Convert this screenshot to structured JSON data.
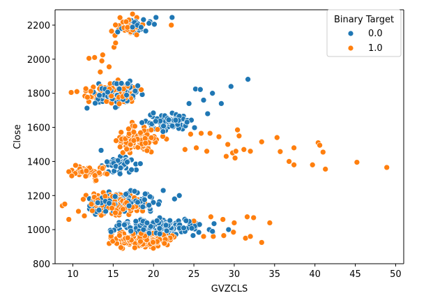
{
  "chart_data": {
    "type": "scatter",
    "xlabel": "GVZCLS",
    "ylabel": "Close",
    "xlim": [
      7.8,
      51.0
    ],
    "ylim": [
      800,
      2290
    ],
    "xticks": [
      10,
      15,
      20,
      25,
      30,
      35,
      40,
      45,
      50
    ],
    "yticks": [
      800,
      1000,
      1200,
      1400,
      1600,
      1800,
      2000,
      2200
    ],
    "grid": false,
    "legend": {
      "title": "Binary Target",
      "placement": "top-right",
      "entries": [
        "0.0",
        "1.0"
      ]
    },
    "series": [
      {
        "name": "0.0",
        "color": "#1f77b4",
        "clusters": [
          {
            "x": [
              15,
              20
            ],
            "y": [
              2120,
              2260
            ],
            "n": 30
          },
          {
            "x": [
              11,
              20
            ],
            "y": [
              1700,
              1890
            ],
            "n": 90
          },
          {
            "x": [
              18,
              26
            ],
            "y": [
              1560,
              1700
            ],
            "n": 70
          },
          {
            "x": [
              13,
              19
            ],
            "y": [
              1300,
              1460
            ],
            "n": 50
          },
          {
            "x": [
              10,
              22
            ],
            "y": [
              1080,
              1240
            ],
            "n": 140
          },
          {
            "x": [
              13,
              28
            ],
            "y": [
              950,
              1080
            ],
            "n": 170
          }
        ],
        "points": [
          [
            20.3,
            2245
          ],
          [
            22.3,
            2245
          ],
          [
            20.1,
            2205
          ],
          [
            31.7,
            1882
          ],
          [
            29.6,
            1840
          ],
          [
            25.8,
            1822
          ],
          [
            27.3,
            1800
          ],
          [
            28.4,
            1740
          ],
          [
            26.2,
            1760
          ],
          [
            25.2,
            1825
          ],
          [
            24.4,
            1740
          ],
          [
            26.7,
            1680
          ],
          [
            11.6,
            1780
          ],
          [
            13.5,
            1465
          ],
          [
            12.8,
            1090
          ],
          [
            24.9,
            1050
          ],
          [
            25.7,
            1030
          ],
          [
            26.9,
            1000
          ],
          [
            27.3,
            990
          ],
          [
            23.2,
            1200
          ],
          [
            22.6,
            1180
          ],
          [
            29.3,
            1000
          ],
          [
            27.5,
            1035
          ],
          [
            25.1,
            1020
          ],
          [
            21.2,
            1230
          ]
        ]
      },
      {
        "name": "1.0",
        "color": "#ff7f0e",
        "clusters": [
          {
            "x": [
              14,
              19
            ],
            "y": [
              2120,
              2260
            ],
            "n": 30
          },
          {
            "x": [
              10,
              20
            ],
            "y": [
              1700,
              1890
            ],
            "n": 90
          },
          {
            "x": [
              14,
              22
            ],
            "y": [
              1420,
              1640
            ],
            "n": 110
          },
          {
            "x": [
              9,
              15
            ],
            "y": [
              1280,
              1400
            ],
            "n": 50
          },
          {
            "x": [
              10,
              20
            ],
            "y": [
              1050,
              1240
            ],
            "n": 140
          },
          {
            "x": [
              13,
              24
            ],
            "y": [
              880,
              1000
            ],
            "n": 170
          }
        ],
        "points": [
          [
            17.4,
            2265
          ],
          [
            22.2,
            2200
          ],
          [
            15.3,
            2095
          ],
          [
            15.1,
            2070
          ],
          [
            12.0,
            2005
          ],
          [
            12.7,
            2010
          ],
          [
            13.7,
            2025
          ],
          [
            13.6,
            1990
          ],
          [
            13.4,
            1925
          ],
          [
            14.5,
            1955
          ],
          [
            9.8,
            1805
          ],
          [
            10.5,
            1810
          ],
          [
            11.6,
            1815
          ],
          [
            16.9,
            1855
          ],
          [
            30.4,
            1585
          ],
          [
            30.6,
            1550
          ],
          [
            29.2,
            1500
          ],
          [
            28.1,
            1545
          ],
          [
            27.0,
            1565
          ],
          [
            24.6,
            1560
          ],
          [
            25.9,
            1565
          ],
          [
            33.4,
            1515
          ],
          [
            35.3,
            1540
          ],
          [
            35.7,
            1458
          ],
          [
            37.4,
            1480
          ],
          [
            30.2,
            1460
          ],
          [
            31.2,
            1470
          ],
          [
            32.0,
            1460
          ],
          [
            29.8,
            1450
          ],
          [
            29.0,
            1430
          ],
          [
            30.1,
            1420
          ],
          [
            26.6,
            1460
          ],
          [
            25.3,
            1480
          ],
          [
            23.9,
            1470
          ],
          [
            40.4,
            1510
          ],
          [
            40.6,
            1495
          ],
          [
            41.0,
            1455
          ],
          [
            39.7,
            1380
          ],
          [
            37.4,
            1380
          ],
          [
            36.8,
            1400
          ],
          [
            41.3,
            1355
          ],
          [
            45.2,
            1395
          ],
          [
            48.9,
            1365
          ],
          [
            9.5,
            1340
          ],
          [
            9.8,
            1330
          ],
          [
            9.0,
            1150
          ],
          [
            8.7,
            1140
          ],
          [
            9.5,
            1060
          ],
          [
            34.4,
            1040
          ],
          [
            30.0,
            1040
          ],
          [
            29.9,
            985
          ],
          [
            31.4,
            950
          ],
          [
            33.4,
            925
          ],
          [
            32.0,
            960
          ],
          [
            28.7,
            965
          ],
          [
            27.4,
            960
          ],
          [
            26.2,
            960
          ],
          [
            31.6,
            1075
          ],
          [
            32.4,
            1070
          ],
          [
            28.6,
            1060
          ],
          [
            27.1,
            1075
          ],
          [
            25.0,
            1050
          ]
        ]
      }
    ]
  }
}
